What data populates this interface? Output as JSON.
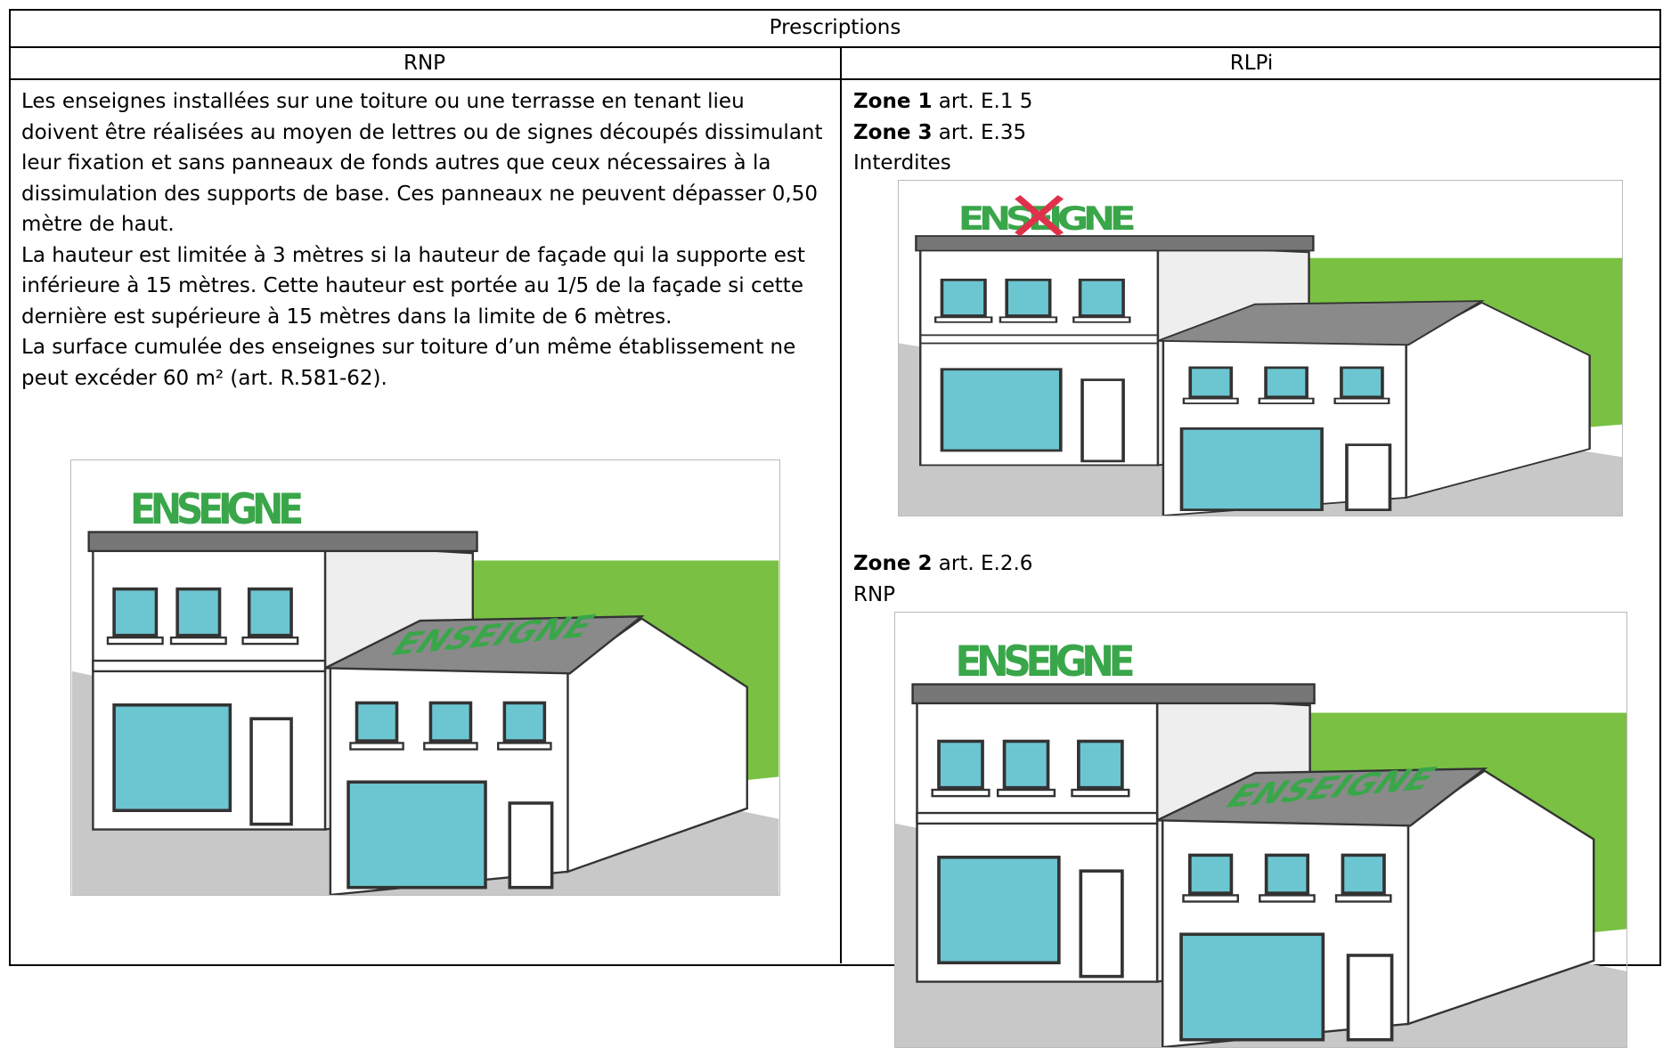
{
  "table": {
    "title": "Prescriptions",
    "headers": [
      "RNP",
      "RLPi"
    ],
    "left": {
      "paragraphs": [
        "Les enseignes installées sur une toiture ou une terrasse en tenant lieu doivent être réalisées au moyen de lettres ou de signes découpés dissimulant leur fixation et sans panneaux de fonds autres que ceux nécessaires à la dissimulation des supports de base. Ces panneaux ne peuvent dépasser 0,50 mètre de haut.",
        "La hauteur est limitée à 3 mètres si la hauteur de façade qui la supporte est inférieure à 15 mètres. Cette hauteur est portée au 1/5 de la façade si cette dernière est supérieure à 15 mètres dans la limite de 6 mètres.",
        "La surface cumulée des enseignes sur toiture d’un même établissement ne peut excéder 60 m² (art. R.581-62)."
      ],
      "image": {
        "sign": "ENSEIGNE",
        "roof_sign": "ENSEIGNE"
      }
    },
    "right": {
      "zone1": {
        "zone": "Zone 1",
        "article": "art. E.1 5"
      },
      "zone3": {
        "zone": "Zone 3",
        "article": "art. E.35"
      },
      "rule_1_3": "Interdites",
      "image1": {
        "sign": "ENSEIGNE"
      },
      "zone2": {
        "zone": "Zone 2",
        "article": "art. E.2.6"
      },
      "rule_2": "RNP",
      "image2": {
        "sign": "ENSEIGNE",
        "roof_sign": "ENSEIGNE"
      }
    }
  }
}
